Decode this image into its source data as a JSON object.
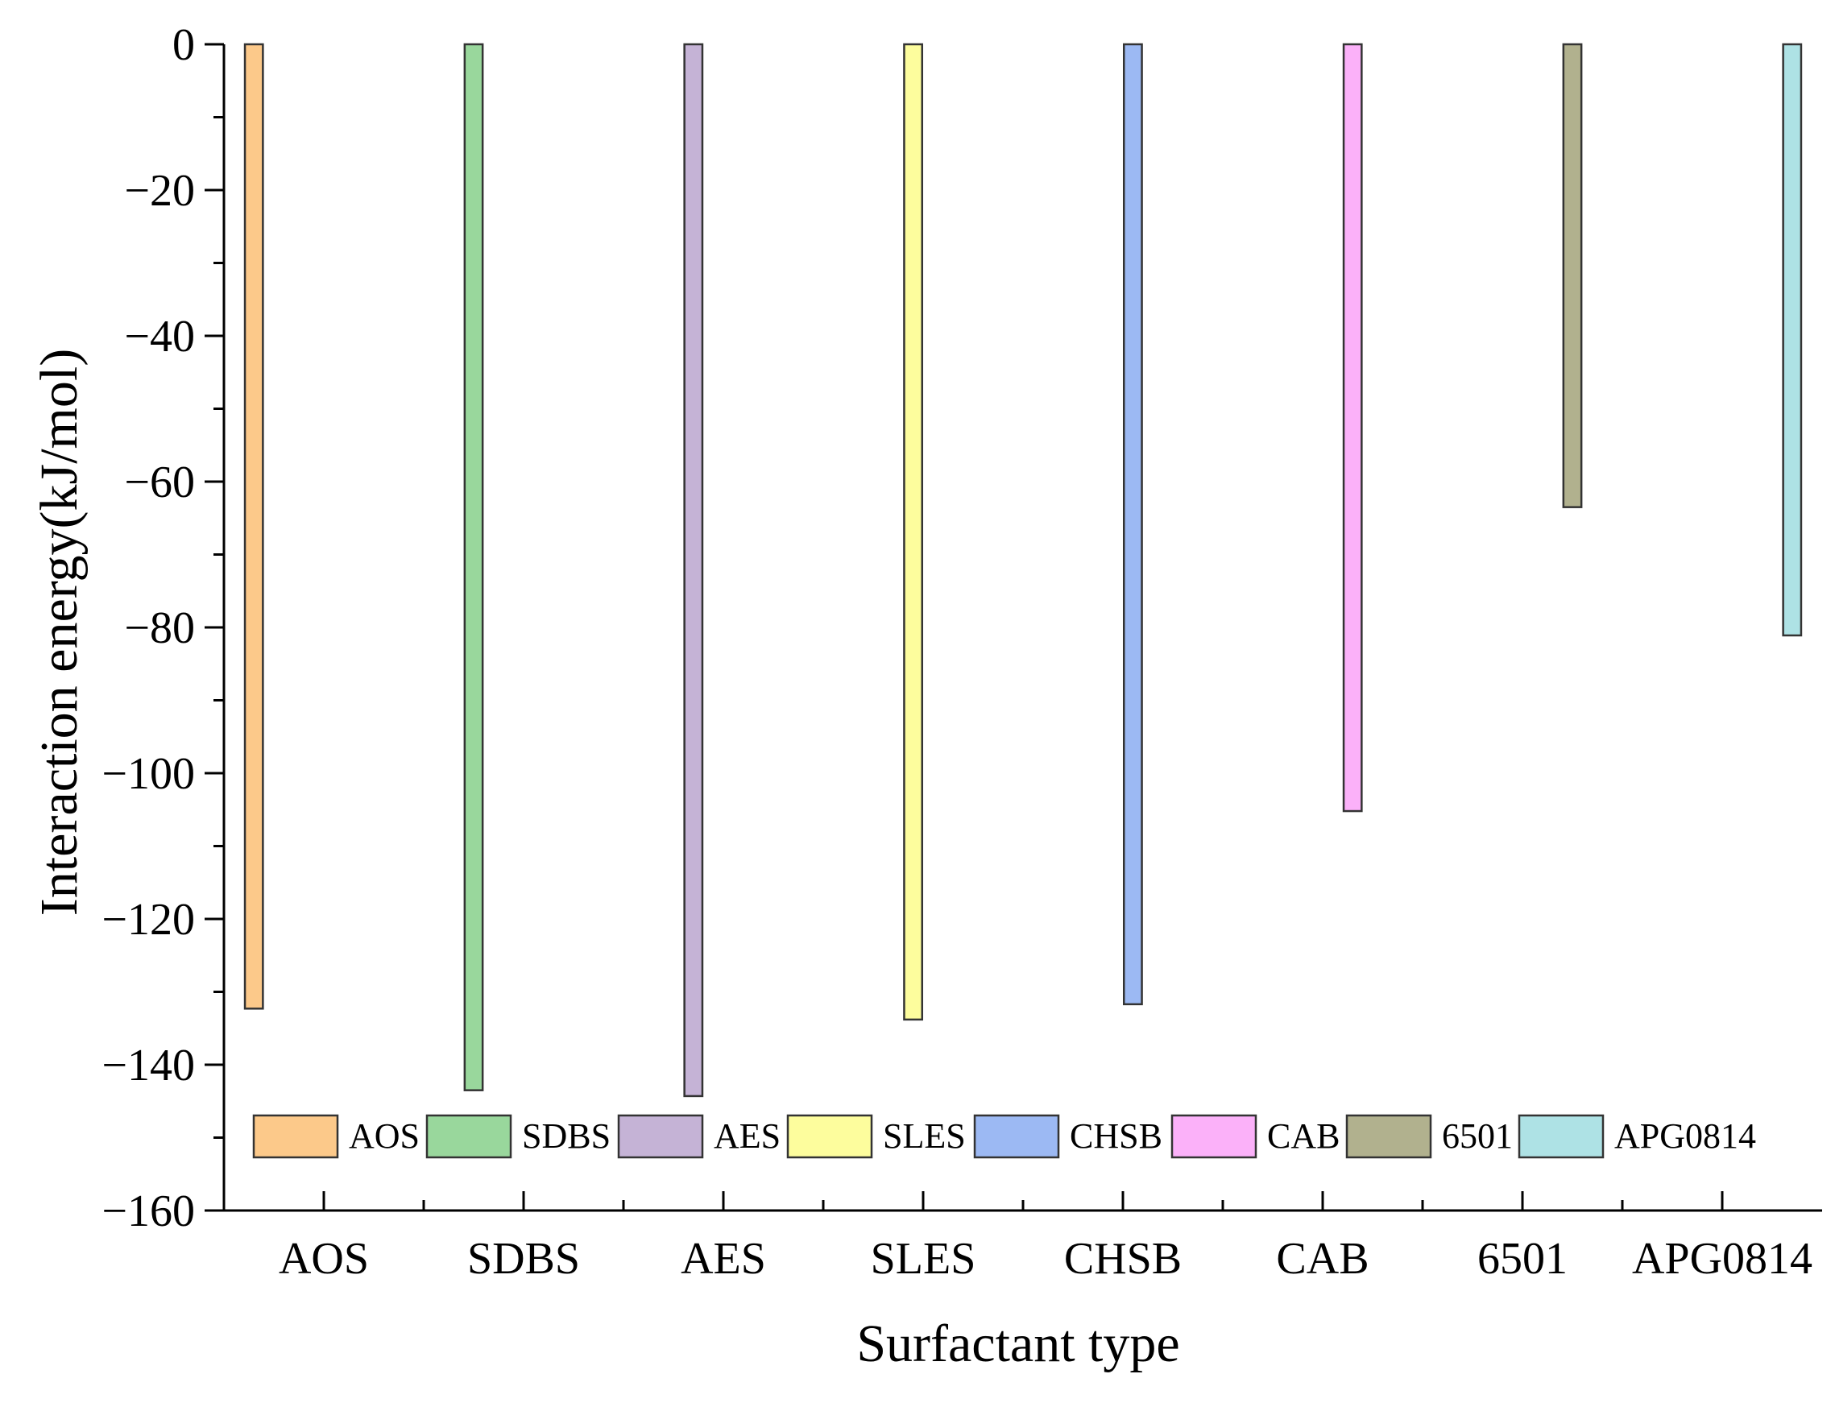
{
  "chart_data": {
    "type": "bar",
    "title": "",
    "xlabel": "Surfactant type",
    "ylabel": "Interaction energy(kJ/mol)",
    "ylim": [
      -160,
      0
    ],
    "yticks": [
      0,
      -20,
      -40,
      -60,
      -80,
      -100,
      -120,
      -140,
      -160
    ],
    "ytick_labels": [
      "0",
      "−20",
      "−40",
      "−60",
      "−80",
      "−100",
      "−120",
      "−140",
      "−160"
    ],
    "categories": [
      "AOS",
      "SDBS",
      "AES",
      "SLES",
      "CHSB",
      "CAB",
      "6501",
      "APG0814"
    ],
    "series": [
      {
        "name": "AOS",
        "color": "#fcc98a",
        "values": [
          -132.3,
          null,
          null,
          null,
          null,
          null,
          null,
          null
        ]
      },
      {
        "name": "SDBS",
        "color": "#99d79c",
        "values": [
          null,
          -143.5,
          null,
          null,
          null,
          null,
          null,
          null
        ]
      },
      {
        "name": "AES",
        "color": "#c5b3d6",
        "values": [
          null,
          null,
          -144.3,
          null,
          null,
          null,
          null,
          null
        ]
      },
      {
        "name": "SLES",
        "color": "#fdfd9d",
        "values": [
          null,
          null,
          null,
          -133.8,
          null,
          null,
          null,
          null
        ]
      },
      {
        "name": "CHSB",
        "color": "#9cb9f3",
        "values": [
          null,
          null,
          null,
          null,
          -131.7,
          null,
          null,
          null
        ]
      },
      {
        "name": "CAB",
        "color": "#fbb1f9",
        "values": [
          null,
          null,
          null,
          null,
          null,
          -105.2,
          null,
          null
        ]
      },
      {
        "name": "6501",
        "color": "#b1b18e",
        "values": [
          null,
          null,
          null,
          null,
          null,
          null,
          -63.5,
          null
        ]
      },
      {
        "name": "APG0814",
        "color": "#aee2e5",
        "values": [
          null,
          null,
          null,
          null,
          null,
          null,
          null,
          -81.1
        ]
      }
    ],
    "grid": false,
    "legend_position": "bottom, inside plot"
  }
}
